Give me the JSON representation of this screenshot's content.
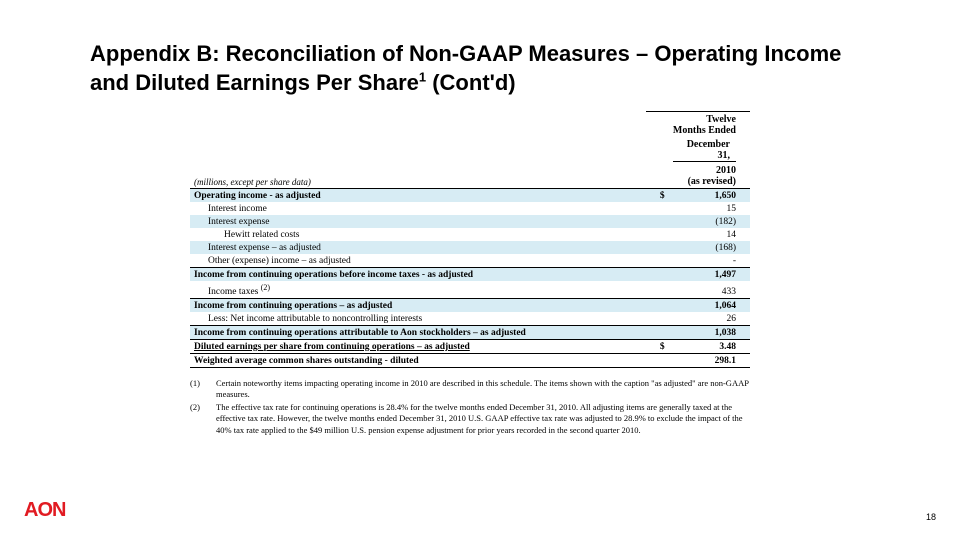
{
  "title_html": "Appendix B: Reconciliation of Non-GAAP Measures – Operating Income and Diluted Earnings Per Share<sup>1</sup> (Cont'd)",
  "period": {
    "line1": "Twelve Months Ended",
    "line2": "December 31,",
    "year": "2010",
    "revised": "(as revised)"
  },
  "units_note": "(millions, except per share data)",
  "rows": [
    {
      "label": "Operating income - as adjusted",
      "cur": "$",
      "val": "1,650",
      "cls": "row-strong b-top",
      "label_cls": ""
    },
    {
      "label": "Interest income",
      "cur": "",
      "val": "15",
      "cls": "",
      "label_cls": "indent-1"
    },
    {
      "label": "Interest expense",
      "cur": "",
      "val": "(182)",
      "cls": "row-alt",
      "label_cls": "indent-1"
    },
    {
      "label": "Hewitt related costs",
      "cur": "",
      "val": "14",
      "cls": "",
      "label_cls": "indent-2"
    },
    {
      "label": "Interest expense – as adjusted",
      "cur": "",
      "val": "(168)",
      "cls": "row-alt",
      "label_cls": "indent-1"
    },
    {
      "label": "Other (expense) income – as adjusted",
      "cur": "",
      "val": "-",
      "cls": "b-bot",
      "label_cls": "indent-1"
    },
    {
      "label": "Income from continuing operations before income taxes - as adjusted",
      "cur": "",
      "val": "1,497",
      "cls": "row-strong",
      "label_cls": ""
    },
    {
      "label": "Income taxes <sup>(2)</sup>",
      "cur": "",
      "val": "433",
      "cls": "b-bot",
      "label_cls": "indent-1",
      "html": true
    },
    {
      "label": "Income from continuing operations – as adjusted",
      "cur": "",
      "val": "1,064",
      "cls": "row-strong",
      "label_cls": ""
    },
    {
      "label": "Less: Net income attributable to noncontrolling interests",
      "cur": "",
      "val": "26",
      "cls": "b-bot",
      "label_cls": "indent-1"
    },
    {
      "label": "Income from continuing operations attributable to Aon stockholders – as adjusted",
      "cur": "",
      "val": "1,038",
      "cls": "row-strong b-bot",
      "label_cls": ""
    },
    {
      "label": "Diluted earnings per share from continuing operations – as adjusted",
      "cur": "$",
      "val": "3.48",
      "cls": "row-bold b-bot",
      "label_cls": "",
      "label_u": true
    },
    {
      "label": "Weighted average common shares outstanding - diluted",
      "cur": "",
      "val": "298.1",
      "cls": "row-bold b-bot",
      "label_cls": ""
    }
  ],
  "footnotes": [
    {
      "n": "(1)",
      "t": "Certain noteworthy items impacting operating income in 2010 are described in this schedule. The items shown with the caption \"as adjusted\" are non-GAAP measures."
    },
    {
      "n": "(2)",
      "t": "The effective tax rate for continuing operations is 28.4% for the twelve months ended December 31, 2010. All adjusting items are generally taxed at the effective tax rate. However, the twelve months ended December 31, 2010 U.S. GAAP effective tax rate was adjusted to 28.9% to exclude the impact of the 40% tax rate applied to the $49 million U.S. pension expense adjustment for prior years recorded in the second quarter 2010."
    }
  ],
  "logo": "AON",
  "page": "18",
  "colors": {
    "highlight": "#d7ecf4",
    "logo": "#e11b22"
  }
}
